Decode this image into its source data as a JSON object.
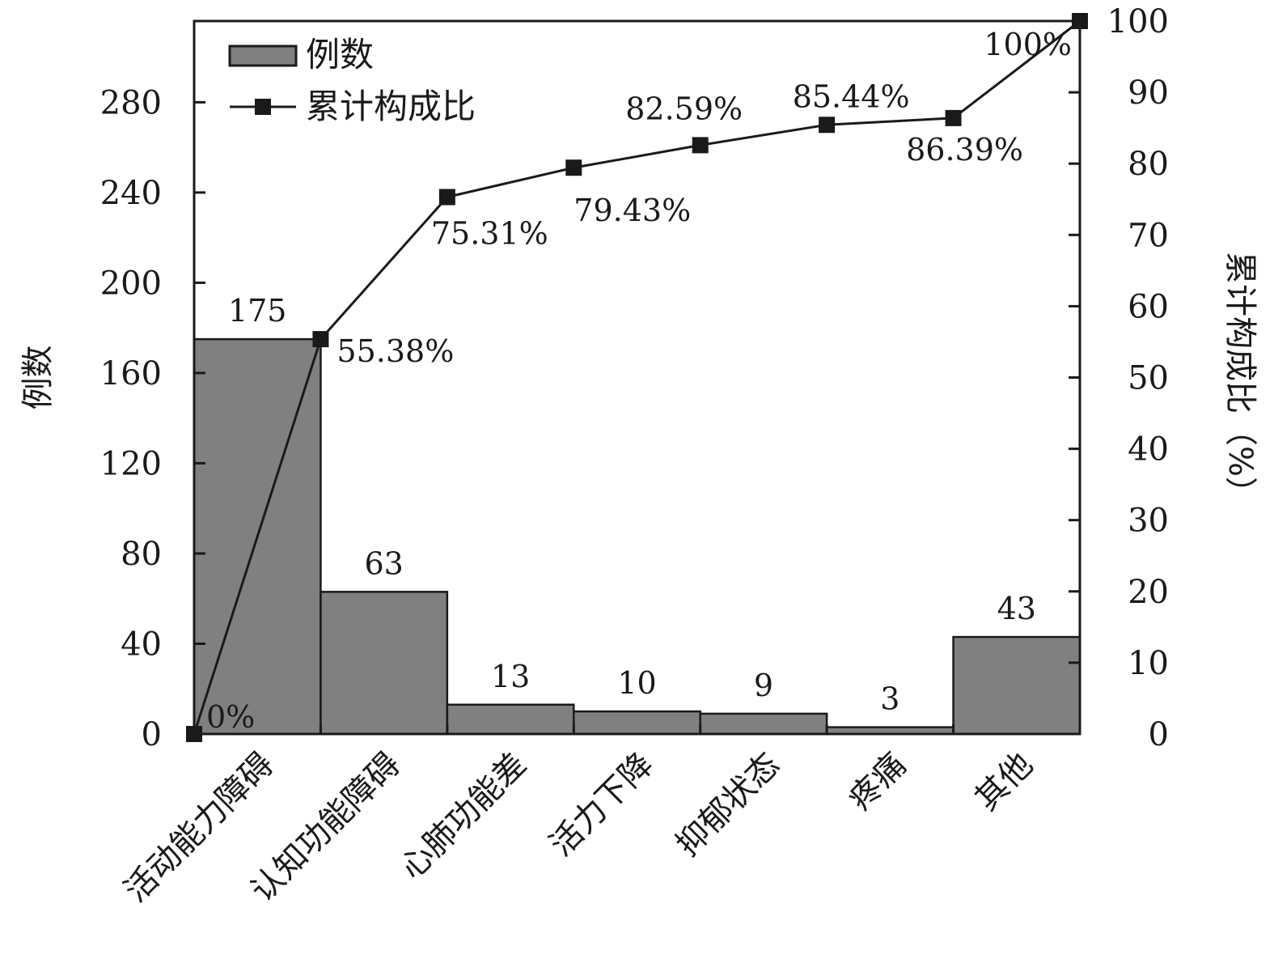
{
  "chart_data": {
    "type": "bar",
    "categories": [
      "活动能力障碍",
      "认知功能障碍",
      "心肺功能差",
      "活力下降",
      "抑郁状态",
      "疼痛",
      "其他"
    ],
    "series": [
      {
        "name": "例数",
        "type": "bar",
        "axis": "left",
        "values": [
          175,
          63,
          13,
          10,
          9,
          3,
          43
        ],
        "labels": [
          "175",
          "63",
          "13",
          "10",
          "9",
          "3",
          "43"
        ]
      },
      {
        "name": "累计构成比",
        "type": "line",
        "axis": "right",
        "points": [
          0,
          55.38,
          75.31,
          79.43,
          82.59,
          85.44,
          86.39,
          100
        ],
        "labels": [
          "0%",
          "55.38%",
          "75.31%",
          "79.43%",
          "82.59%",
          "85.44%",
          "86.39%",
          "100%"
        ]
      }
    ],
    "ylabel": "例数",
    "y2label": "累计构成比（%）",
    "ylim": [
      0,
      316
    ],
    "y2lim": [
      0,
      100
    ],
    "yticks": [
      0,
      40,
      80,
      120,
      160,
      200,
      240,
      280
    ],
    "y2ticks": [
      0,
      10,
      20,
      30,
      40,
      50,
      60,
      70,
      80,
      90,
      100
    ],
    "legend_position": "top-left",
    "bar_color": "#808080",
    "grid": false
  }
}
